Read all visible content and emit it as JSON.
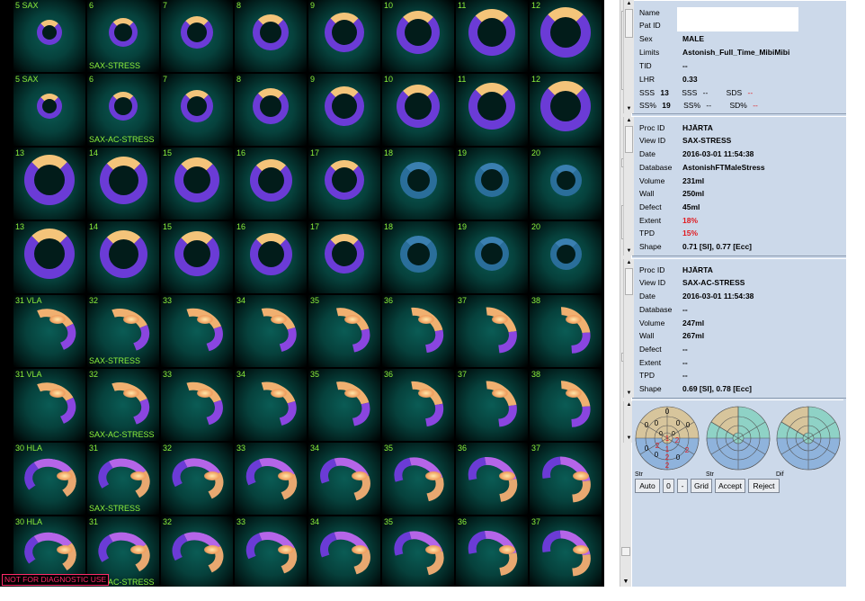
{
  "viewer": {
    "rows": [
      {
        "cells": [
          "5 SAX",
          "6",
          "7",
          "8",
          "9",
          "10",
          "11",
          "12"
        ],
        "annotation": "SAX-STRESS",
        "kind": "sax"
      },
      {
        "cells": [
          "5 SAX",
          "6",
          "7",
          "8",
          "9",
          "10",
          "11",
          "12"
        ],
        "annotation": "SAX-AC-STRESS",
        "kind": "sax"
      },
      {
        "cells": [
          "13",
          "14",
          "15",
          "16",
          "17",
          "18",
          "19",
          "20"
        ],
        "annotation": "",
        "kind": "sax2"
      },
      {
        "cells": [
          "13",
          "14",
          "15",
          "16",
          "17",
          "18",
          "19",
          "20"
        ],
        "annotation": "",
        "kind": "sax2"
      },
      {
        "cells": [
          "31 VLA",
          "32",
          "33",
          "34",
          "35",
          "36",
          "37",
          "38"
        ],
        "annotation": "SAX-STRESS",
        "kind": "vla"
      },
      {
        "cells": [
          "31 VLA",
          "32",
          "33",
          "34",
          "35",
          "36",
          "37",
          "38"
        ],
        "annotation": "SAX-AC-STRESS",
        "kind": "vla"
      },
      {
        "cells": [
          "30 HLA",
          "31",
          "32",
          "33",
          "34",
          "35",
          "36",
          "37"
        ],
        "annotation": "SAX-STRESS",
        "kind": "hla"
      },
      {
        "cells": [
          "30 HLA",
          "31",
          "32",
          "33",
          "34",
          "35",
          "36",
          "37"
        ],
        "annotation": "SAX-AC-STRESS",
        "kind": "hla"
      }
    ],
    "disclaimer": "NOT FOR DIAGNOSTIC USE"
  },
  "patient": {
    "name_label": "Name",
    "name_value": "",
    "patid_label": "Pat ID",
    "patid_value": "",
    "sex_label": "Sex",
    "sex_value": "MALE",
    "limits_label": "Limits",
    "limits_value": "Astonish_Full_Time_MibiMibi",
    "tid_label": "TID",
    "tid_value": "--",
    "lhr_label": "LHR",
    "lhr_value": "0.33",
    "sss_label": "SSS",
    "sss_value": "13",
    "sss2_label": "SSS",
    "sss2_value": "--",
    "sds_label": "SDS",
    "sds_value": "--",
    "ssp_label": "SS%",
    "ssp_value": "19",
    "ssp2_label": "SS%",
    "ssp2_value": "--",
    "sdp_label": "SD%",
    "sdp_value": "--"
  },
  "proc1": {
    "procid_label": "Proc ID",
    "procid_value": "HJÄRTA",
    "viewid_label": "View ID",
    "viewid_value": "SAX-STRESS",
    "date_label": "Date",
    "date_value": "2016-03-01 11:54:38",
    "database_label": "Database",
    "database_value": "AstonishFTMaleStress",
    "volume_label": "Volume",
    "volume_value": "231ml",
    "wall_label": "Wall",
    "wall_value": "250ml",
    "defect_label": "Defect",
    "defect_value": "45ml",
    "extent_label": "Extent",
    "extent_value": "18%",
    "tpd_label": "TPD",
    "tpd_value": "15%",
    "shape_label": "Shape",
    "shape_value": "0.71 [SI], 0.77 [Ecc]"
  },
  "proc2": {
    "procid_label": "Proc ID",
    "procid_value": "HJÄRTA",
    "viewid_label": "View ID",
    "viewid_value": "SAX-AC-STRESS",
    "date_label": "Date",
    "date_value": "2016-03-01 11:54:38",
    "database_label": "Database",
    "database_value": "--",
    "volume_label": "Volume",
    "volume_value": "247ml",
    "wall_label": "Wall",
    "wall_value": "267ml",
    "defect_label": "Defect",
    "defect_value": "--",
    "extent_label": "Extent",
    "extent_value": "--",
    "tpd_label": "TPD",
    "tpd_value": "--",
    "shape_label": "Shape",
    "shape_value": "0.69 [SI], 0.78 [Ecc]"
  },
  "bullseye": {
    "labels": [
      "Str",
      "Str",
      "Dif"
    ],
    "stress_scores": {
      "outer": [
        "0",
        "0",
        "0",
        "0",
        "0",
        "0"
      ],
      "mid": [
        "0",
        "0",
        "1",
        "2",
        "0",
        "0"
      ],
      "apical": [
        "0",
        "2",
        "2",
        "0"
      ],
      "apex": "1",
      "extra": [
        "2",
        "2",
        "2"
      ]
    },
    "colors": {
      "tan": "#d7c59c",
      "blue": "#8fb3dc",
      "teal": "#8fd2c6",
      "score_red": "#e0191e"
    }
  },
  "buttons": {
    "auto": "Auto",
    "zero": "0",
    "minus": "-",
    "grid": "Grid",
    "accept": "Accept",
    "reject": "Reject"
  }
}
